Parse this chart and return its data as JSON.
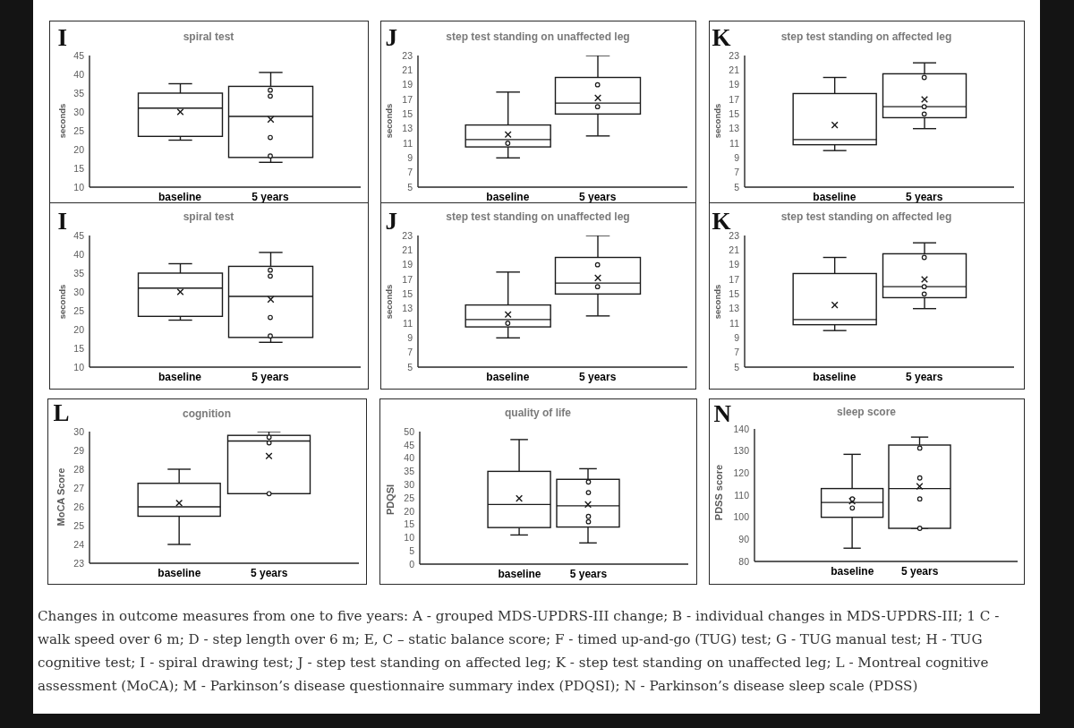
{
  "chart_data": [
    {
      "type": "box",
      "title": "spiral test",
      "ylabel": "seconds",
      "annotations": [
        "I"
      ],
      "categories": [
        "baseline",
        "5 years"
      ],
      "ylim": [
        10,
        45
      ],
      "yticks": [
        10,
        15,
        20,
        25,
        30,
        35,
        40,
        45
      ],
      "series": [
        {
          "type": "box",
          "color": "#1a1a1a",
          "boxes": [
            {
              "low": 22.5,
              "q1": 23.5,
              "median": 31,
              "q3": 35,
              "high": 37.5,
              "mean": 30
            },
            {
              "low": 16.6,
              "q1": 17.9,
              "median": 28.8,
              "q3": 36.8,
              "high": 40.5,
              "mean": 28
            }
          ]
        },
        {
          "type": "scatter",
          "color": "#1a1a1a",
          "marker": "circle",
          "x": [
            "5 years",
            "5 years",
            "5 years",
            "5 years"
          ],
          "values": [
            35.8,
            34.2,
            23.2,
            18.3
          ]
        }
      ]
    },
    {
      "type": "box",
      "title": "step test standing on unaffected leg",
      "ylabel": "seconds",
      "annotations": [
        "J"
      ],
      "categories": [
        "baseline",
        "5 years"
      ],
      "ylim": [
        5,
        23
      ],
      "yticks": [
        5,
        7,
        9,
        11,
        13,
        15,
        17,
        19,
        21,
        23
      ],
      "series": [
        {
          "type": "box",
          "color": "#1a1a1a",
          "boxes": [
            {
              "low": 9,
              "q1": 10.5,
              "median": 11.5,
              "q3": 13.5,
              "high": 18,
              "mean": 12.2
            },
            {
              "low": 12,
              "q1": 15,
              "median": 16.5,
              "q3": 20,
              "high": 23,
              "mean": 17.2
            }
          ]
        },
        {
          "type": "scatter",
          "color": "#1a1a1a",
          "marker": "circle",
          "x": [
            "baseline",
            "5 years",
            "5 years"
          ],
          "values": [
            11,
            19,
            16
          ]
        }
      ]
    },
    {
      "type": "box",
      "title": "step test standing on affected leg",
      "ylabel": "seconds",
      "annotations": [
        "K"
      ],
      "categories": [
        "baseline",
        "5 years"
      ],
      "ylim": [
        5,
        23
      ],
      "yticks": [
        5,
        7,
        9,
        11,
        13,
        15,
        17,
        19,
        21,
        23
      ],
      "series": [
        {
          "type": "box",
          "color": "#1a1a1a",
          "boxes": [
            {
              "low": 10,
              "q1": 10.8,
              "median": 11.5,
              "q3": 17.8,
              "high": 20,
              "mean": 13.5
            },
            {
              "low": 13,
              "q1": 14.5,
              "median": 16,
              "q3": 20.5,
              "high": 22,
              "mean": 17
            }
          ]
        },
        {
          "type": "scatter",
          "color": "#1a1a1a",
          "marker": "circle",
          "x": [
            "5 years",
            "5 years",
            "5 years"
          ],
          "values": [
            20,
            16,
            15
          ]
        }
      ]
    },
    {
      "type": "box",
      "title": "spiral test",
      "ylabel": "seconds",
      "annotations": [
        "I"
      ],
      "categories": [
        "baseline",
        "5 years"
      ],
      "ylim": [
        10,
        45
      ],
      "yticks": [
        10,
        15,
        20,
        25,
        30,
        35,
        40,
        45
      ],
      "series": [
        {
          "type": "box",
          "color": "#1a1a1a",
          "boxes": [
            {
              "low": 22.5,
              "q1": 23.5,
              "median": 31,
              "q3": 35,
              "high": 37.5,
              "mean": 30
            },
            {
              "low": 16.6,
              "q1": 17.9,
              "median": 28.8,
              "q3": 36.8,
              "high": 40.5,
              "mean": 28
            }
          ]
        },
        {
          "type": "scatter",
          "color": "#1a1a1a",
          "marker": "circle",
          "x": [
            "5 years",
            "5 years",
            "5 years",
            "5 years"
          ],
          "values": [
            35.8,
            34.2,
            23.2,
            18.3
          ]
        }
      ]
    },
    {
      "type": "box",
      "title": "step test standing on unaffected leg",
      "ylabel": "seconds",
      "annotations": [
        "J"
      ],
      "categories": [
        "baseline",
        "5 years"
      ],
      "ylim": [
        5,
        23
      ],
      "yticks": [
        5,
        7,
        9,
        11,
        13,
        15,
        17,
        19,
        21,
        23
      ],
      "series": [
        {
          "type": "box",
          "color": "#1a1a1a",
          "boxes": [
            {
              "low": 9,
              "q1": 10.5,
              "median": 11.5,
              "q3": 13.5,
              "high": 18,
              "mean": 12.2
            },
            {
              "low": 12,
              "q1": 15,
              "median": 16.5,
              "q3": 20,
              "high": 23,
              "mean": 17.2
            }
          ]
        },
        {
          "type": "scatter",
          "color": "#1a1a1a",
          "marker": "circle",
          "x": [
            "baseline",
            "5 years",
            "5 years"
          ],
          "values": [
            11,
            19,
            16
          ]
        }
      ]
    },
    {
      "type": "box",
      "title": "step test standing on affected leg",
      "ylabel": "seconds",
      "annotations": [
        "K"
      ],
      "categories": [
        "baseline",
        "5 years"
      ],
      "ylim": [
        5,
        23
      ],
      "yticks": [
        5,
        7,
        9,
        11,
        13,
        15,
        17,
        19,
        21,
        23
      ],
      "series": [
        {
          "type": "box",
          "color": "#1a1a1a",
          "boxes": [
            {
              "low": 10,
              "q1": 10.8,
              "median": 11.5,
              "q3": 17.8,
              "high": 20,
              "mean": 13.5
            },
            {
              "low": 13,
              "q1": 14.5,
              "median": 16,
              "q3": 20.5,
              "high": 22,
              "mean": 17
            }
          ]
        },
        {
          "type": "scatter",
          "color": "#1a1a1a",
          "marker": "circle",
          "x": [
            "5 years",
            "5 years",
            "5 years"
          ],
          "values": [
            20,
            16,
            15
          ]
        }
      ]
    },
    {
      "type": "box",
      "title": "cognition",
      "ylabel": "MoCA Score",
      "annotations": [
        "L"
      ],
      "categories": [
        "baseline",
        "5 years"
      ],
      "ylim": [
        23,
        30
      ],
      "yticks": [
        23,
        24,
        25,
        26,
        27,
        28,
        29,
        30
      ],
      "series": [
        {
          "type": "box",
          "color": "#1a1a1a",
          "boxes": [
            {
              "low": 24,
              "q1": 25.5,
              "median": 26,
              "q3": 27.25,
              "high": 28,
              "mean": 26.2
            },
            {
              "low": 26.7,
              "q1": 26.7,
              "median": 29.5,
              "q3": 29.8,
              "high": 30,
              "mean": 28.7
            }
          ]
        },
        {
          "type": "scatter",
          "color": "#1a1a1a",
          "marker": "circle",
          "x": [
            "5 years",
            "5 years",
            "5 years"
          ],
          "values": [
            29.7,
            29.4,
            26.7
          ]
        }
      ]
    },
    {
      "type": "box",
      "title": "quality of life",
      "ylabel": "PDQSI",
      "categories": [
        "baseline",
        "5 years"
      ],
      "ylim": [
        0,
        50
      ],
      "yticks": [
        0,
        5,
        10,
        15,
        20,
        25,
        30,
        35,
        40,
        45,
        50
      ],
      "series": [
        {
          "type": "box",
          "color": "#1a1a1a",
          "boxes": [
            {
              "low": 11,
              "q1": 13.8,
              "median": 22.5,
              "q3": 35,
              "high": 47,
              "mean": 24.8
            },
            {
              "low": 8,
              "q1": 14,
              "median": 22,
              "q3": 32,
              "high": 36,
              "mean": 22.5
            }
          ]
        },
        {
          "type": "scatter",
          "color": "#1a1a1a",
          "marker": "circle",
          "x": [
            "5 years",
            "5 years",
            "5 years",
            "5 years"
          ],
          "values": [
            31,
            27,
            18,
            16
          ]
        }
      ]
    },
    {
      "type": "box",
      "title": "sleep score",
      "ylabel": "PDSS score",
      "annotations": [
        "N"
      ],
      "categories": [
        "baseline",
        "5 years"
      ],
      "ylim": [
        80,
        140
      ],
      "yticks": [
        80,
        90,
        100,
        110,
        120,
        130,
        140
      ],
      "series": [
        {
          "type": "box",
          "color": "#1a1a1a",
          "boxes": [
            {
              "low": 86,
              "q1": 100,
              "median": 106.7,
              "q3": 113,
              "high": 128.5,
              "mean": 107.3
            },
            {
              "low": 95,
              "q1": 95,
              "median": 113,
              "q3": 132.7,
              "high": 136.3,
              "mean": 114
            }
          ]
        },
        {
          "type": "scatter",
          "color": "#1a1a1a",
          "marker": "circle",
          "x": [
            "baseline",
            "baseline",
            "5 years",
            "5 years",
            "5 years",
            "5 years"
          ],
          "values": [
            108.3,
            104.2,
            131.3,
            117.8,
            108.3,
            95
          ]
        }
      ]
    },
    {
      "type": "other",
      "annotations": [
        "Changes in outcome measures from one to five years: A - grouped MDS-UPDRS-III change; B - individual changes in MDS-UPDRS-III; 1 C - walk speed over 6 m; D - step length over 6 m; E, C – static balance score; F - timed up-and-go (TUG) test; G - TUG manual test; H - TUG cognitive test; I - spiral drawing test; J - step test standing on affected leg; K - step test standing on unaffected leg; L - Montreal cognitive assessment (MoCA); M - Parkinson’s disease questionnaire summary index (PDQSI); N - Parkinson’s disease sleep scale (PDSS)"
      ]
    }
  ]
}
